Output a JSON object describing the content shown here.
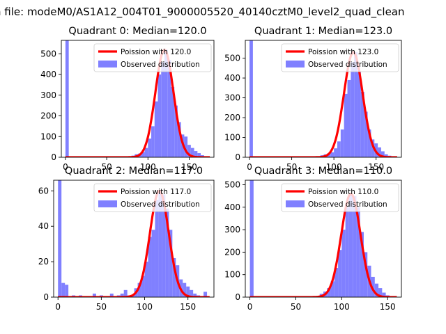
{
  "figure_title": "n file: modeM0/AS1A12_004T01_9000005520_40140cztM0_level2_quad_clean",
  "colors": {
    "poisson": "#ff0000",
    "observed": "#8080ff"
  },
  "chart_data": [
    {
      "type": "bar",
      "title": "Quadrant 0: Median=120.0",
      "median": 120.0,
      "xlim": [
        -5,
        180
      ],
      "ylim": [
        0,
        565
      ],
      "xticks": [
        0,
        50,
        100,
        150
      ],
      "yticks": [
        0,
        100,
        200,
        300,
        400,
        500
      ],
      "legend": [
        "Poission with 120.0",
        "Observed distribution"
      ],
      "legend_loc": "upper right",
      "bin_width": 4,
      "bins": [
        {
          "x": 0,
          "y": 565
        },
        {
          "x": 4,
          "y": 0
        },
        {
          "x": 64,
          "y": 3
        },
        {
          "x": 76,
          "y": 5
        },
        {
          "x": 80,
          "y": 8
        },
        {
          "x": 84,
          "y": 15
        },
        {
          "x": 88,
          "y": 18
        },
        {
          "x": 92,
          "y": 25
        },
        {
          "x": 96,
          "y": 45
        },
        {
          "x": 100,
          "y": 90
        },
        {
          "x": 104,
          "y": 150
        },
        {
          "x": 108,
          "y": 270
        },
        {
          "x": 112,
          "y": 400
        },
        {
          "x": 116,
          "y": 460
        },
        {
          "x": 120,
          "y": 520
        },
        {
          "x": 124,
          "y": 470
        },
        {
          "x": 128,
          "y": 340
        },
        {
          "x": 132,
          "y": 250
        },
        {
          "x": 136,
          "y": 170
        },
        {
          "x": 140,
          "y": 110
        },
        {
          "x": 144,
          "y": 100
        },
        {
          "x": 148,
          "y": 60
        },
        {
          "x": 152,
          "y": 45
        },
        {
          "x": 156,
          "y": 30
        },
        {
          "x": 160,
          "y": 20
        },
        {
          "x": 164,
          "y": 10
        },
        {
          "x": 168,
          "y": 5
        }
      ]
    },
    {
      "type": "bar",
      "title": "Quadrant 1: Median=123.0",
      "median": 123.0,
      "xlim": [
        -5,
        180
      ],
      "ylim": [
        0,
        590
      ],
      "xticks": [
        0,
        50,
        100,
        150
      ],
      "yticks": [
        0,
        100,
        200,
        300,
        400,
        500
      ],
      "legend": [
        "Poission with 123.0",
        "Observed distribution"
      ],
      "legend_loc": "upper right",
      "bin_width": 4,
      "bins": [
        {
          "x": 0,
          "y": 590
        },
        {
          "x": 4,
          "y": 0
        },
        {
          "x": 68,
          "y": 3
        },
        {
          "x": 80,
          "y": 5
        },
        {
          "x": 84,
          "y": 10
        },
        {
          "x": 88,
          "y": 15
        },
        {
          "x": 92,
          "y": 20
        },
        {
          "x": 96,
          "y": 25
        },
        {
          "x": 100,
          "y": 45
        },
        {
          "x": 104,
          "y": 80
        },
        {
          "x": 108,
          "y": 140
        },
        {
          "x": 112,
          "y": 320
        },
        {
          "x": 116,
          "y": 390
        },
        {
          "x": 120,
          "y": 480
        },
        {
          "x": 124,
          "y": 530
        },
        {
          "x": 128,
          "y": 430
        },
        {
          "x": 132,
          "y": 330
        },
        {
          "x": 136,
          "y": 230
        },
        {
          "x": 140,
          "y": 140
        },
        {
          "x": 144,
          "y": 90
        },
        {
          "x": 148,
          "y": 70
        },
        {
          "x": 152,
          "y": 50
        },
        {
          "x": 156,
          "y": 30
        },
        {
          "x": 160,
          "y": 15
        },
        {
          "x": 164,
          "y": 8
        },
        {
          "x": 168,
          "y": 3
        }
      ]
    },
    {
      "type": "bar",
      "title": "Quadrant 2: Median=117.0",
      "median": 117.0,
      "xlim": [
        -5,
        180
      ],
      "ylim": [
        0,
        66
      ],
      "xticks": [
        0,
        50,
        100,
        150
      ],
      "yticks": [
        0,
        20,
        40,
        60
      ],
      "legend": [
        "Poission with 117.0",
        "Observed distribution"
      ],
      "legend_loc": "upper right",
      "bin_width": 4,
      "bins": [
        {
          "x": 0,
          "y": 66
        },
        {
          "x": 4,
          "y": 8
        },
        {
          "x": 8,
          "y": 7
        },
        {
          "x": 16,
          "y": 1
        },
        {
          "x": 24,
          "y": 1
        },
        {
          "x": 40,
          "y": 2
        },
        {
          "x": 48,
          "y": 1
        },
        {
          "x": 60,
          "y": 2
        },
        {
          "x": 68,
          "y": 1
        },
        {
          "x": 72,
          "y": 2
        },
        {
          "x": 76,
          "y": 4
        },
        {
          "x": 80,
          "y": 1
        },
        {
          "x": 84,
          "y": 1
        },
        {
          "x": 88,
          "y": 5
        },
        {
          "x": 92,
          "y": 8
        },
        {
          "x": 96,
          "y": 12
        },
        {
          "x": 100,
          "y": 20
        },
        {
          "x": 104,
          "y": 34
        },
        {
          "x": 108,
          "y": 38
        },
        {
          "x": 112,
          "y": 55
        },
        {
          "x": 116,
          "y": 60
        },
        {
          "x": 120,
          "y": 58
        },
        {
          "x": 124,
          "y": 50
        },
        {
          "x": 128,
          "y": 38
        },
        {
          "x": 132,
          "y": 22
        },
        {
          "x": 136,
          "y": 18
        },
        {
          "x": 140,
          "y": 10
        },
        {
          "x": 144,
          "y": 8
        },
        {
          "x": 148,
          "y": 6
        },
        {
          "x": 152,
          "y": 4
        },
        {
          "x": 156,
          "y": 2
        },
        {
          "x": 160,
          "y": 1
        },
        {
          "x": 168,
          "y": 3
        }
      ]
    },
    {
      "type": "bar",
      "title": "Quadrant 3: Median=110.0",
      "median": 110.0,
      "xlim": [
        -5,
        165
      ],
      "ylim": [
        0,
        520
      ],
      "xticks": [
        0,
        50,
        100,
        150
      ],
      "yticks": [
        0,
        100,
        200,
        300,
        400,
        500
      ],
      "legend": [
        "Poission with 110.0",
        "Observed distribution"
      ],
      "legend_loc": "upper right",
      "bin_width": 4,
      "bins": [
        {
          "x": 0,
          "y": 520
        },
        {
          "x": 4,
          "y": 0
        },
        {
          "x": 64,
          "y": 3
        },
        {
          "x": 72,
          "y": 5
        },
        {
          "x": 76,
          "y": 15
        },
        {
          "x": 80,
          "y": 25
        },
        {
          "x": 84,
          "y": 40
        },
        {
          "x": 88,
          "y": 70
        },
        {
          "x": 92,
          "y": 130
        },
        {
          "x": 96,
          "y": 210
        },
        {
          "x": 100,
          "y": 300
        },
        {
          "x": 104,
          "y": 400
        },
        {
          "x": 108,
          "y": 460
        },
        {
          "x": 112,
          "y": 450
        },
        {
          "x": 116,
          "y": 400
        },
        {
          "x": 120,
          "y": 290
        },
        {
          "x": 124,
          "y": 200
        },
        {
          "x": 128,
          "y": 140
        },
        {
          "x": 132,
          "y": 90
        },
        {
          "x": 136,
          "y": 60
        },
        {
          "x": 140,
          "y": 40
        },
        {
          "x": 144,
          "y": 20
        },
        {
          "x": 148,
          "y": 8
        },
        {
          "x": 152,
          "y": 3
        }
      ]
    }
  ]
}
